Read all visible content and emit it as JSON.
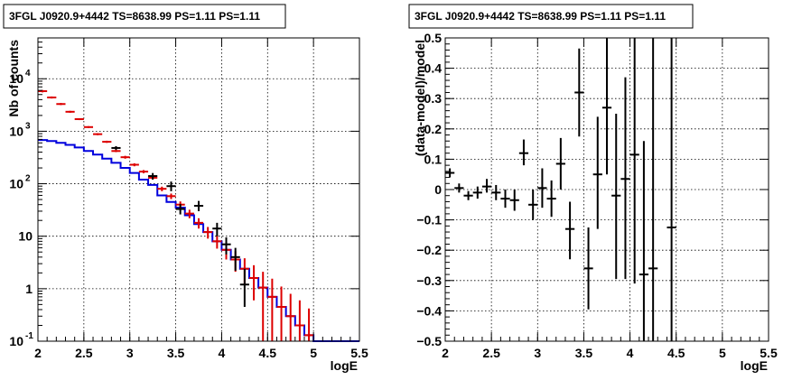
{
  "chart_data": [
    {
      "type": "line",
      "title": "3FGL J0920.9+4442 TS=8638.99 PS=1.11 PS=1.11",
      "xlabel": "logE",
      "ylabel": "Nb of counts",
      "xlim": [
        2,
        5.5
      ],
      "ylim": [
        0.1,
        60000
      ],
      "yscale": "log",
      "grid": true,
      "x_ticks": [
        "2",
        "2.5",
        "3",
        "3.5",
        "4",
        "4.5",
        "5",
        "5.5"
      ],
      "y_ticks": [
        {
          "value": 0.1,
          "base": "10",
          "exp": "-1"
        },
        {
          "value": 1,
          "base": "1",
          "exp": ""
        },
        {
          "value": 10,
          "base": "10",
          "exp": ""
        },
        {
          "value": 100,
          "base": "10",
          "exp": "2"
        },
        {
          "value": 1000,
          "base": "10",
          "exp": "3"
        },
        {
          "value": 10000,
          "base": "10",
          "exp": "4"
        }
      ],
      "colors": {
        "data": "#000000",
        "model_total": "#dd0000",
        "model_source": "#0000dd"
      },
      "series": [
        {
          "role": "data",
          "color": "#000000",
          "points": [
            {
              "x": 2.85,
              "y": 480,
              "lo": 440,
              "hi": 520
            },
            {
              "x": 3.25,
              "y": 140,
              "lo": 120,
              "hi": 160
            },
            {
              "x": 3.45,
              "y": 90,
              "lo": 72,
              "hi": 110
            },
            {
              "x": 3.55,
              "y": 33,
              "lo": 26,
              "hi": 41
            },
            {
              "x": 3.75,
              "y": 38,
              "lo": 30,
              "hi": 47
            },
            {
              "x": 3.95,
              "y": 14,
              "lo": 10,
              "hi": 18
            },
            {
              "x": 4.05,
              "y": 7,
              "lo": 4.5,
              "hi": 9.5
            },
            {
              "x": 4.15,
              "y": 4,
              "lo": 2.2,
              "hi": 6
            },
            {
              "x": 4.25,
              "y": 1.2,
              "lo": 0.45,
              "hi": 2.4
            }
          ]
        },
        {
          "role": "model_total",
          "color": "#dd0000",
          "points": [
            {
              "x": 2.05,
              "y": 5800,
              "lo": 5500,
              "hi": 6100
            },
            {
              "x": 2.15,
              "y": 4400,
              "lo": 4200,
              "hi": 4600
            },
            {
              "x": 2.25,
              "y": 3300,
              "lo": 3150,
              "hi": 3450
            },
            {
              "x": 2.35,
              "y": 2350,
              "lo": 2250,
              "hi": 2450
            },
            {
              "x": 2.45,
              "y": 1700,
              "lo": 1630,
              "hi": 1770
            },
            {
              "x": 2.55,
              "y": 1200,
              "lo": 1150,
              "hi": 1250
            },
            {
              "x": 2.65,
              "y": 880,
              "lo": 840,
              "hi": 920
            },
            {
              "x": 2.75,
              "y": 630,
              "lo": 600,
              "hi": 660
            },
            {
              "x": 2.85,
              "y": 420,
              "lo": 400,
              "hi": 440
            },
            {
              "x": 2.95,
              "y": 320,
              "lo": 300,
              "hi": 340
            },
            {
              "x": 3.05,
              "y": 230,
              "lo": 215,
              "hi": 245
            },
            {
              "x": 3.15,
              "y": 170,
              "lo": 158,
              "hi": 182
            },
            {
              "x": 3.25,
              "y": 130,
              "lo": 120,
              "hi": 140
            },
            {
              "x": 3.35,
              "y": 80,
              "lo": 72,
              "hi": 88
            },
            {
              "x": 3.45,
              "y": 58,
              "lo": 51,
              "hi": 65
            },
            {
              "x": 3.55,
              "y": 40,
              "lo": 34,
              "hi": 46
            },
            {
              "x": 3.65,
              "y": 27,
              "lo": 22,
              "hi": 32
            },
            {
              "x": 3.75,
              "y": 18,
              "lo": 14,
              "hi": 22
            },
            {
              "x": 3.85,
              "y": 12,
              "lo": 9,
              "hi": 15
            },
            {
              "x": 3.95,
              "y": 8,
              "lo": 5.8,
              "hi": 10.5
            },
            {
              "x": 4.05,
              "y": 5.5,
              "lo": 3.6,
              "hi": 7.6
            },
            {
              "x": 4.15,
              "y": 3.6,
              "lo": 2.1,
              "hi": 5.2
            },
            {
              "x": 4.25,
              "y": 2.4,
              "lo": 1.2,
              "hi": 3.8
            },
            {
              "x": 4.35,
              "y": 1.6,
              "lo": 0.6,
              "hi": 2.8
            },
            {
              "x": 4.45,
              "y": 1.05,
              "lo": 0.1,
              "hi": 2.1
            },
            {
              "x": 4.55,
              "y": 0.7,
              "lo": 0.1,
              "hi": 1.55
            },
            {
              "x": 4.65,
              "y": 0.45,
              "lo": 0.1,
              "hi": 1.1
            },
            {
              "x": 4.75,
              "y": 0.3,
              "lo": 0.1,
              "hi": 0.8
            },
            {
              "x": 4.85,
              "y": 0.2,
              "lo": 0.1,
              "hi": 0.6
            },
            {
              "x": 4.95,
              "y": 0.13,
              "lo": 0.1,
              "hi": 0.42
            }
          ]
        },
        {
          "role": "model_source",
          "color": "#0000dd",
          "step_edges": [
            2.0,
            2.1,
            2.2,
            2.3,
            2.4,
            2.5,
            2.6,
            2.7,
            2.8,
            2.9,
            3.0,
            3.1,
            3.2,
            3.3,
            3.4,
            3.5,
            3.6,
            3.7,
            3.8,
            3.9,
            4.0,
            4.1,
            4.2,
            4.3,
            4.4,
            4.5,
            4.6,
            4.7,
            4.8,
            4.9,
            5.0,
            5.5
          ],
          "step_values": [
            680,
            650,
            600,
            550,
            490,
            420,
            360,
            300,
            250,
            200,
            160,
            120,
            95,
            60,
            45,
            35,
            25,
            17,
            12,
            8,
            5.5,
            3.6,
            2.4,
            1.6,
            1.05,
            0.7,
            0.45,
            0.3,
            0.2,
            0.13,
            0.1
          ]
        }
      ]
    },
    {
      "type": "scatter",
      "title": "3FGL J0920.9+4442 TS=8638.99 PS=1.11 PS=1.11",
      "xlabel": "logE",
      "ylabel": "(data-model)/model",
      "xlim": [
        2,
        5.5
      ],
      "ylim": [
        -0.5,
        0.5
      ],
      "grid": true,
      "x_ticks": [
        "2",
        "2.5",
        "3",
        "3.5",
        "4",
        "4.5",
        "5",
        "5.5"
      ],
      "y_ticks": [
        "−0.5",
        "−0.4",
        "−0.3",
        "−0.2",
        "−0.1",
        "0",
        "0.1",
        "0.2",
        "0.3",
        "0.4",
        "0.5"
      ],
      "y_tick_values": [
        -0.5,
        -0.4,
        -0.3,
        -0.2,
        -0.1,
        0,
        0.1,
        0.2,
        0.3,
        0.4,
        0.5
      ],
      "points": [
        {
          "x": 2.05,
          "y": 0.055,
          "lo": 0.04,
          "hi": 0.07
        },
        {
          "x": 2.15,
          "y": 0.005,
          "lo": -0.01,
          "hi": 0.02
        },
        {
          "x": 2.25,
          "y": -0.02,
          "lo": -0.035,
          "hi": -0.005
        },
        {
          "x": 2.35,
          "y": -0.01,
          "lo": -0.03,
          "hi": 0.01
        },
        {
          "x": 2.45,
          "y": 0.01,
          "lo": -0.01,
          "hi": 0.035
        },
        {
          "x": 2.55,
          "y": -0.01,
          "lo": -0.035,
          "hi": 0.015
        },
        {
          "x": 2.65,
          "y": -0.03,
          "lo": -0.06,
          "hi": 0.0
        },
        {
          "x": 2.75,
          "y": -0.035,
          "lo": -0.07,
          "hi": 0.0
        },
        {
          "x": 2.85,
          "y": 0.12,
          "lo": 0.08,
          "hi": 0.165
        },
        {
          "x": 2.95,
          "y": -0.05,
          "lo": -0.1,
          "hi": 0.0
        },
        {
          "x": 3.05,
          "y": 0.005,
          "lo": -0.06,
          "hi": 0.07
        },
        {
          "x": 3.15,
          "y": -0.03,
          "lo": -0.09,
          "hi": 0.03
        },
        {
          "x": 3.25,
          "y": 0.085,
          "lo": 0.0,
          "hi": 0.17
        },
        {
          "x": 3.35,
          "y": -0.13,
          "lo": -0.23,
          "hi": -0.04
        },
        {
          "x": 3.45,
          "y": 0.32,
          "lo": 0.175,
          "hi": 0.465
        },
        {
          "x": 3.55,
          "y": -0.26,
          "lo": -0.395,
          "hi": -0.125
        },
        {
          "x": 3.65,
          "y": 0.05,
          "lo": -0.13,
          "hi": 0.24
        },
        {
          "x": 3.75,
          "y": 0.27,
          "lo": 0.05,
          "hi": 0.5
        },
        {
          "x": 3.85,
          "y": -0.02,
          "lo": -0.295,
          "hi": 0.25
        },
        {
          "x": 3.95,
          "y": 0.035,
          "lo": -0.295,
          "hi": 0.37
        },
        {
          "x": 4.05,
          "y": 0.115,
          "lo": -0.31,
          "hi": 0.5
        },
        {
          "x": 4.15,
          "y": -0.28,
          "lo": -0.5,
          "hi": 0.16
        },
        {
          "x": 4.25,
          "y": -0.26,
          "lo": -0.5,
          "hi": 0.5
        },
        {
          "x": 4.45,
          "y": -0.125,
          "lo": -0.5,
          "hi": 0.5
        }
      ]
    }
  ]
}
